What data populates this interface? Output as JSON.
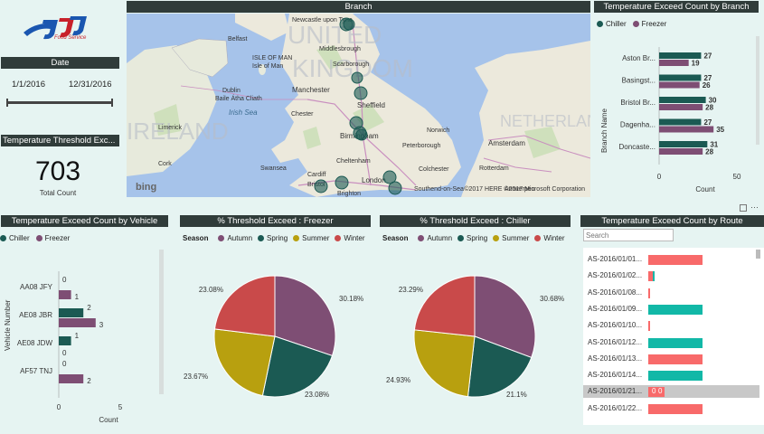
{
  "logo": {
    "text": "Food Service"
  },
  "date_filter": {
    "title": "Date",
    "start": "1/1/2016",
    "end": "12/31/2016"
  },
  "threshold_card": {
    "title": "Temperature Threshold Exc...",
    "value": "703",
    "label": "Total Count"
  },
  "map": {
    "title": "Branch",
    "attribution": "©2017 HERE ©2017 Microsoft Corporation",
    "provider": "bing",
    "labels": [
      "Newcastle upon Tyne",
      "Belfast",
      "ISLE OF MAN",
      "Middlesbrough",
      "Isle of Man",
      "Scarborough",
      "Dublin",
      "Baile Átha Cliath",
      "Manchester",
      "Irish Sea",
      "Sheffield",
      "Chester",
      "Limerick",
      "Cork",
      "Birmingham",
      "Norwich",
      "Amsterdam",
      "Swansea",
      "Cardiff",
      "Bristol",
      "Colchester",
      "London",
      "Rotterdam",
      "Southend-on-Sea",
      "Brighton",
      "Antwerpen",
      "Cheltenham",
      "Peterborough",
      "UNITED",
      "KINGDOM",
      "IRELAND",
      "NETHERLANDS"
    ]
  },
  "branch_chart": {
    "title": "Temperature Exceed Count by Branch",
    "legend": [
      "Chiller",
      "Freezer"
    ],
    "ylabel": "Branch Name",
    "xlabel": "Count",
    "ticks": [
      "0",
      "50"
    ]
  },
  "vehicle_chart": {
    "title": "Temperature Exceed Count by Vehicle",
    "legend": [
      "Chiller",
      "Freezer"
    ],
    "ylabel": "Vehicle Number",
    "xlabel": "Count",
    "ticks": [
      "0",
      "5"
    ]
  },
  "freezer_pie": {
    "title": "% Threshold Exceed : Freezer",
    "legend_title": "Season"
  },
  "chiller_pie": {
    "title": "% Threshold Exceed : Chiller",
    "legend_title": "Season"
  },
  "route_chart": {
    "title": "Temperature Exceed Count by Route",
    "search_placeholder": "Search"
  },
  "colors": {
    "chiller": "#1b5a53",
    "freezer": "#7e4e74",
    "autumn": "#7e4e74",
    "spring": "#1b5a53",
    "summer": "#b8a00f",
    "winter": "#c94a4a",
    "route_red": "#f86a6a",
    "route_teal": "#12b8a7"
  },
  "chart_data": [
    {
      "type": "bar",
      "title": "Temperature Exceed Count by Branch",
      "categories": [
        "Aston Br...",
        "Basingst...",
        "Bristol Br...",
        "Dagenha...",
        "Doncaste..."
      ],
      "series": [
        {
          "name": "Chiller",
          "values": [
            27,
            27,
            30,
            27,
            31
          ]
        },
        {
          "name": "Freezer",
          "values": [
            19,
            26,
            28,
            35,
            28
          ]
        }
      ],
      "xlim": [
        0,
        60
      ]
    },
    {
      "type": "bar",
      "title": "Temperature Exceed Count by Vehicle",
      "categories": [
        "AA08 JFY",
        "AE08 JBR",
        "AE08 JDW",
        "AF57 TNJ"
      ],
      "series": [
        {
          "name": "Chiller",
          "values": [
            0,
            2,
            1,
            0
          ]
        },
        {
          "name": "Freezer",
          "values": [
            1,
            3,
            0,
            2
          ]
        }
      ],
      "xlim": [
        0,
        5
      ]
    },
    {
      "type": "pie",
      "title": "% Threshold Exceed : Freezer",
      "categories": [
        "Autumn",
        "Spring",
        "Summer",
        "Winter"
      ],
      "values": [
        30.18,
        23.08,
        23.67,
        23.08
      ],
      "labels": [
        "30.18%",
        "23.08%",
        "23.67%",
        "23.08%"
      ]
    },
    {
      "type": "pie",
      "title": "% Threshold Exceed : Chiller",
      "categories": [
        "Autumn",
        "Spring",
        "Summer",
        "Winter"
      ],
      "values": [
        30.68,
        21.1,
        24.93,
        23.29
      ],
      "labels": [
        "30.68%",
        "21.1%",
        "24.93%",
        "23.29%"
      ]
    },
    {
      "type": "bar",
      "title": "Temperature Exceed Count by Route",
      "categories": [
        "AS-2016/01/01...",
        "AS-2016/01/02...",
        "AS-2016/01/08...",
        "AS-2016/01/09...",
        "AS-2016/01/10...",
        "AS-2016/01/12...",
        "AS-2016/01/13...",
        "AS-2016/01/14...",
        "AS-2016/01/21...",
        "AS-2016/01/22..."
      ],
      "series": [
        {
          "name": "Freezer",
          "values": [
            1,
            0.08,
            0.04,
            0,
            0.04,
            0,
            1,
            0,
            0,
            1
          ]
        },
        {
          "name": "Chiller",
          "values": [
            0,
            0.04,
            0,
            1,
            0,
            1,
            0,
            1,
            0,
            0
          ]
        }
      ],
      "data_labels_row9": [
        "0",
        "0"
      ]
    }
  ]
}
